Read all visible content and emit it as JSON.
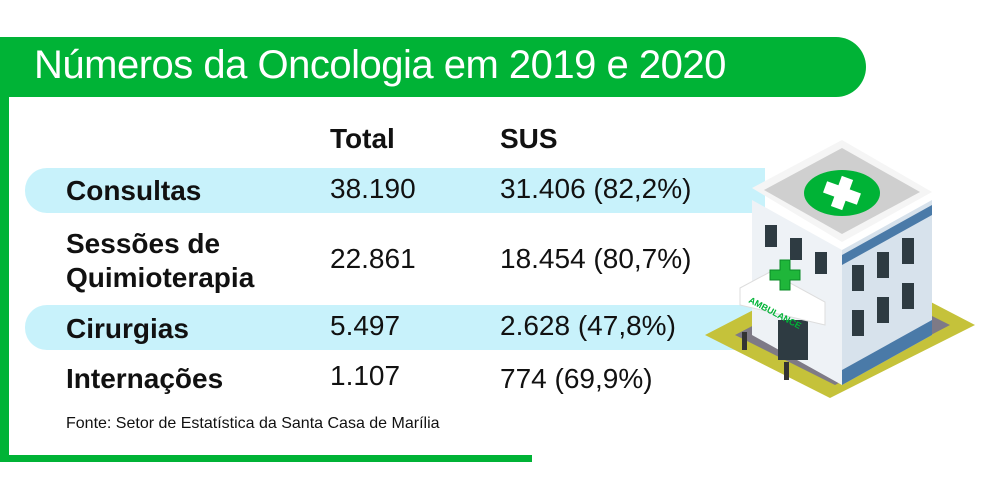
{
  "title": "Números da Oncologia em 2019 e 2020",
  "columns": {
    "total": "Total",
    "sus": "SUS"
  },
  "rows": [
    {
      "label": "Consultas",
      "total": "38.190",
      "sus": "31.406 (82,2%)"
    },
    {
      "label_line1": "Sessões de",
      "label_line2": "Quimioterapia",
      "total": "22.861",
      "sus": "18.454 (80,7%)"
    },
    {
      "label": "Cirurgias",
      "total": "5.497",
      "sus": "2.628 (47,8%)"
    },
    {
      "label": "Internações",
      "total": "1.107",
      "sus": "774 (69,9%)"
    }
  ],
  "source": "Fonte: Setor de Estatística da Santa Casa de Marília",
  "illustration": {
    "sign": "AMBULANCE"
  },
  "colors": {
    "green": "#00b336",
    "band": "#c8f2fb"
  }
}
